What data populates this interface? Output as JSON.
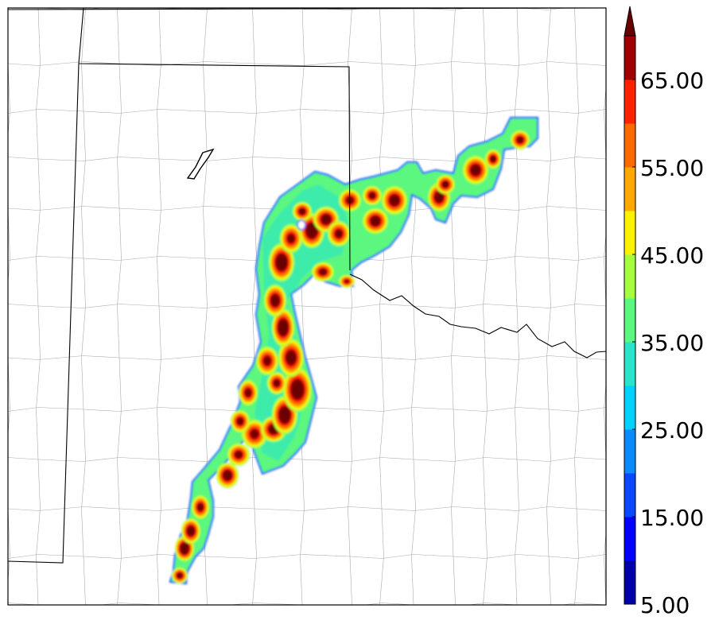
{
  "colorbar": {
    "labels": [
      "5.00",
      "15.00",
      "25.00",
      "35.00",
      "45.00",
      "55.00",
      "65.00"
    ],
    "min": 5,
    "max": 70,
    "step": 5,
    "extend": "max",
    "colors": [
      "#0000aa",
      "#0000ff",
      "#0a48ff",
      "#0a8cff",
      "#00d2ff",
      "#2ae3c8",
      "#5cf77e",
      "#a6ff3c",
      "#fff200",
      "#ffa800",
      "#ff6a00",
      "#ff2200",
      "#a00000",
      "#6a0000"
    ]
  },
  "map": {
    "field": "filled contours",
    "borders": [
      "state boundaries",
      "county boundaries"
    ],
    "water": "river"
  }
}
